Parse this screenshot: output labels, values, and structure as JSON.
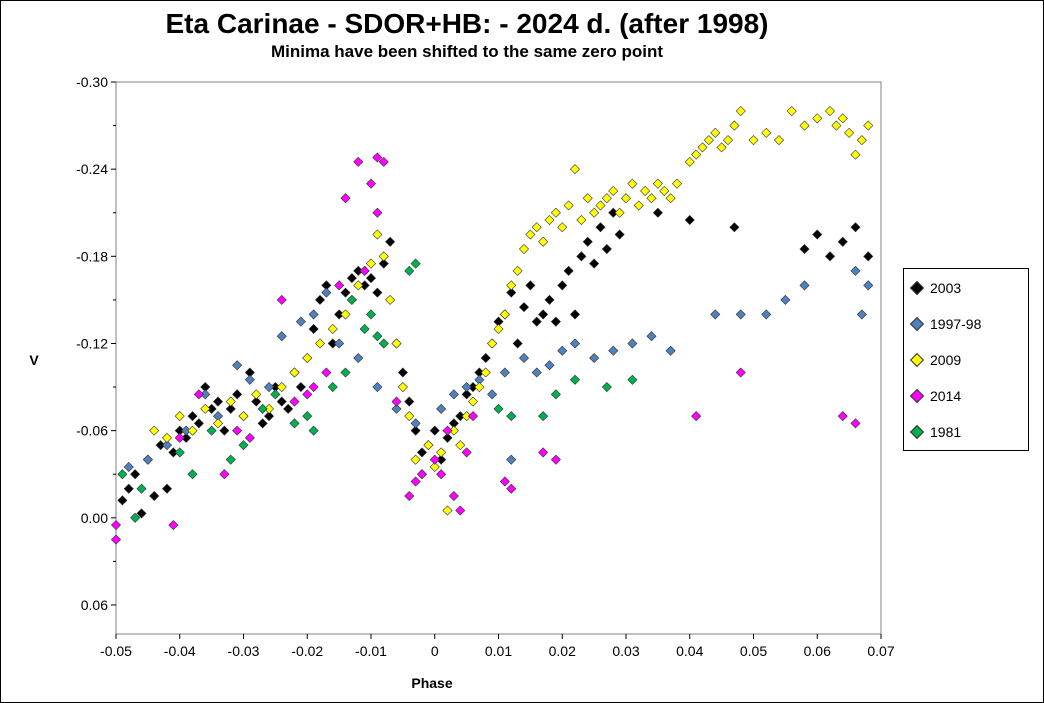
{
  "chart_data": {
    "type": "scatter",
    "title": "Eta Carinae - SDOR+HB: - 2024 d. (after 1998)",
    "subtitle": "Minima have been shifted to the same zero point",
    "xlabel": "Phase",
    "ylabel": "V",
    "xlim": [
      -0.05,
      0.07
    ],
    "ylim": [
      -0.3,
      0.08
    ],
    "y_inverted": true,
    "xticks": [
      "-0.05",
      "-0.04",
      "-0.03",
      "-0.02",
      "-0.01",
      "0",
      "0.01",
      "0.02",
      "0.03",
      "0.04",
      "0.05",
      "0.06",
      "0.07"
    ],
    "yticks": [
      "-0.30",
      "-0.24",
      "-0.18",
      "-0.12",
      "-0.06",
      "0.00",
      "0.06"
    ],
    "legend_position": "right",
    "series": [
      {
        "name": "2003",
        "color": "#000000",
        "points": [
          [
            -0.049,
            -0.012
          ],
          [
            -0.048,
            -0.02
          ],
          [
            -0.047,
            -0.03
          ],
          [
            -0.046,
            -0.003
          ],
          [
            -0.045,
            -0.04
          ],
          [
            -0.044,
            -0.015
          ],
          [
            -0.043,
            -0.05
          ],
          [
            -0.042,
            -0.02
          ],
          [
            -0.041,
            -0.045
          ],
          [
            -0.04,
            -0.06
          ],
          [
            -0.039,
            -0.055
          ],
          [
            -0.038,
            -0.07
          ],
          [
            -0.037,
            -0.065
          ],
          [
            -0.036,
            -0.09
          ],
          [
            -0.035,
            -0.075
          ],
          [
            -0.034,
            -0.08
          ],
          [
            -0.033,
            -0.06
          ],
          [
            -0.032,
            -0.075
          ],
          [
            -0.031,
            -0.085
          ],
          [
            -0.03,
            -0.07
          ],
          [
            -0.029,
            -0.1
          ],
          [
            -0.028,
            -0.08
          ],
          [
            -0.027,
            -0.065
          ],
          [
            -0.026,
            -0.07
          ],
          [
            -0.025,
            -0.09
          ],
          [
            -0.024,
            -0.08
          ],
          [
            -0.023,
            -0.075
          ],
          [
            -0.022,
            -0.1
          ],
          [
            -0.021,
            -0.09
          ],
          [
            -0.02,
            -0.11
          ],
          [
            -0.019,
            -0.13
          ],
          [
            -0.018,
            -0.15
          ],
          [
            -0.017,
            -0.16
          ],
          [
            -0.016,
            -0.12
          ],
          [
            -0.015,
            -0.14
          ],
          [
            -0.014,
            -0.155
          ],
          [
            -0.013,
            -0.165
          ],
          [
            -0.012,
            -0.17
          ],
          [
            -0.011,
            -0.16
          ],
          [
            -0.01,
            -0.165
          ],
          [
            -0.009,
            -0.155
          ],
          [
            -0.008,
            -0.175
          ],
          [
            -0.007,
            -0.19
          ],
          [
            -0.006,
            -0.12
          ],
          [
            -0.005,
            -0.1
          ],
          [
            -0.004,
            -0.08
          ],
          [
            -0.003,
            -0.06
          ],
          [
            -0.002,
            -0.045
          ],
          [
            -0.001,
            -0.05
          ],
          [
            0.0,
            -0.06
          ],
          [
            0.001,
            -0.04
          ],
          [
            0.002,
            -0.055
          ],
          [
            0.003,
            -0.065
          ],
          [
            0.004,
            -0.07
          ],
          [
            0.005,
            -0.085
          ],
          [
            0.006,
            -0.09
          ],
          [
            0.007,
            -0.1
          ],
          [
            0.008,
            -0.11
          ],
          [
            0.009,
            -0.12
          ],
          [
            0.01,
            -0.135
          ],
          [
            0.011,
            -0.14
          ],
          [
            0.012,
            -0.155
          ],
          [
            0.013,
            -0.12
          ],
          [
            0.014,
            -0.145
          ],
          [
            0.015,
            -0.16
          ],
          [
            0.016,
            -0.135
          ],
          [
            0.017,
            -0.14
          ],
          [
            0.018,
            -0.15
          ],
          [
            0.019,
            -0.135
          ],
          [
            0.02,
            -0.16
          ],
          [
            0.021,
            -0.17
          ],
          [
            0.022,
            -0.14
          ],
          [
            0.023,
            -0.18
          ],
          [
            0.024,
            -0.19
          ],
          [
            0.025,
            -0.175
          ],
          [
            0.026,
            -0.2
          ],
          [
            0.027,
            -0.185
          ],
          [
            0.028,
            -0.21
          ],
          [
            0.029,
            -0.195
          ],
          [
            0.035,
            -0.21
          ],
          [
            0.04,
            -0.205
          ],
          [
            0.047,
            -0.2
          ],
          [
            0.058,
            -0.185
          ],
          [
            0.06,
            -0.195
          ],
          [
            0.062,
            -0.18
          ],
          [
            0.064,
            -0.19
          ],
          [
            0.066,
            -0.2
          ],
          [
            0.068,
            -0.18
          ]
        ]
      },
      {
        "name": "1997-98",
        "color": "#4f81bd",
        "points": [
          [
            -0.048,
            -0.035
          ],
          [
            -0.045,
            -0.04
          ],
          [
            -0.042,
            -0.05
          ],
          [
            -0.039,
            -0.06
          ],
          [
            -0.036,
            -0.085
          ],
          [
            -0.034,
            -0.07
          ],
          [
            -0.031,
            -0.105
          ],
          [
            -0.029,
            -0.095
          ],
          [
            -0.026,
            -0.09
          ],
          [
            -0.024,
            -0.125
          ],
          [
            -0.021,
            -0.135
          ],
          [
            -0.019,
            -0.14
          ],
          [
            -0.017,
            -0.155
          ],
          [
            -0.015,
            -0.12
          ],
          [
            -0.012,
            -0.11
          ],
          [
            -0.009,
            -0.09
          ],
          [
            -0.006,
            -0.075
          ],
          [
            -0.003,
            -0.065
          ],
          [
            0.001,
            -0.075
          ],
          [
            0.003,
            -0.085
          ],
          [
            0.005,
            -0.09
          ],
          [
            0.007,
            -0.095
          ],
          [
            0.009,
            -0.085
          ],
          [
            0.011,
            -0.1
          ],
          [
            0.012,
            -0.04
          ],
          [
            0.014,
            -0.11
          ],
          [
            0.016,
            -0.1
          ],
          [
            0.018,
            -0.105
          ],
          [
            0.02,
            -0.115
          ],
          [
            0.022,
            -0.12
          ],
          [
            0.025,
            -0.11
          ],
          [
            0.028,
            -0.115
          ],
          [
            0.031,
            -0.12
          ],
          [
            0.034,
            -0.125
          ],
          [
            0.037,
            -0.115
          ],
          [
            0.044,
            -0.14
          ],
          [
            0.048,
            -0.14
          ],
          [
            0.052,
            -0.14
          ],
          [
            0.055,
            -0.15
          ],
          [
            0.058,
            -0.16
          ],
          [
            0.066,
            -0.17
          ],
          [
            0.067,
            -0.14
          ],
          [
            0.068,
            -0.16
          ]
        ]
      },
      {
        "name": "2009",
        "color": "#ffff00",
        "points": [
          [
            -0.044,
            -0.06
          ],
          [
            -0.042,
            -0.055
          ],
          [
            -0.04,
            -0.07
          ],
          [
            -0.038,
            -0.06
          ],
          [
            -0.036,
            -0.075
          ],
          [
            -0.034,
            -0.065
          ],
          [
            -0.032,
            -0.08
          ],
          [
            -0.03,
            -0.07
          ],
          [
            -0.028,
            -0.085
          ],
          [
            -0.026,
            -0.075
          ],
          [
            -0.024,
            -0.09
          ],
          [
            -0.022,
            -0.1
          ],
          [
            -0.02,
            -0.11
          ],
          [
            -0.018,
            -0.12
          ],
          [
            -0.016,
            -0.13
          ],
          [
            -0.014,
            -0.14
          ],
          [
            -0.013,
            -0.15
          ],
          [
            -0.012,
            -0.16
          ],
          [
            -0.011,
            -0.17
          ],
          [
            -0.01,
            -0.175
          ],
          [
            -0.009,
            -0.195
          ],
          [
            -0.008,
            -0.18
          ],
          [
            -0.007,
            -0.15
          ],
          [
            -0.006,
            -0.12
          ],
          [
            -0.005,
            -0.09
          ],
          [
            -0.004,
            -0.07
          ],
          [
            -0.003,
            -0.04
          ],
          [
            -0.002,
            -0.03
          ],
          [
            -0.001,
            -0.05
          ],
          [
            0.0,
            -0.035
          ],
          [
            0.001,
            -0.045
          ],
          [
            0.002,
            -0.005
          ],
          [
            0.003,
            -0.06
          ],
          [
            0.004,
            -0.05
          ],
          [
            0.005,
            -0.07
          ],
          [
            0.006,
            -0.08
          ],
          [
            0.007,
            -0.09
          ],
          [
            0.008,
            -0.1
          ],
          [
            0.009,
            -0.12
          ],
          [
            0.01,
            -0.13
          ],
          [
            0.011,
            -0.14
          ],
          [
            0.012,
            -0.16
          ],
          [
            0.013,
            -0.17
          ],
          [
            0.014,
            -0.185
          ],
          [
            0.015,
            -0.195
          ],
          [
            0.016,
            -0.2
          ],
          [
            0.017,
            -0.19
          ],
          [
            0.018,
            -0.205
          ],
          [
            0.019,
            -0.21
          ],
          [
            0.02,
            -0.2
          ],
          [
            0.021,
            -0.215
          ],
          [
            0.022,
            -0.24
          ],
          [
            0.023,
            -0.205
          ],
          [
            0.024,
            -0.22
          ],
          [
            0.025,
            -0.21
          ],
          [
            0.026,
            -0.215
          ],
          [
            0.027,
            -0.22
          ],
          [
            0.028,
            -0.225
          ],
          [
            0.029,
            -0.21
          ],
          [
            0.03,
            -0.22
          ],
          [
            0.031,
            -0.23
          ],
          [
            0.032,
            -0.215
          ],
          [
            0.033,
            -0.225
          ],
          [
            0.034,
            -0.22
          ],
          [
            0.035,
            -0.23
          ],
          [
            0.036,
            -0.225
          ],
          [
            0.037,
            -0.22
          ],
          [
            0.038,
            -0.23
          ],
          [
            0.04,
            -0.245
          ],
          [
            0.041,
            -0.25
          ],
          [
            0.042,
            -0.255
          ],
          [
            0.043,
            -0.26
          ],
          [
            0.044,
            -0.265
          ],
          [
            0.045,
            -0.255
          ],
          [
            0.046,
            -0.26
          ],
          [
            0.047,
            -0.27
          ],
          [
            0.048,
            -0.28
          ],
          [
            0.05,
            -0.26
          ],
          [
            0.052,
            -0.265
          ],
          [
            0.054,
            -0.26
          ],
          [
            0.056,
            -0.28
          ],
          [
            0.058,
            -0.27
          ],
          [
            0.06,
            -0.275
          ],
          [
            0.062,
            -0.28
          ],
          [
            0.063,
            -0.27
          ],
          [
            0.064,
            -0.275
          ],
          [
            0.065,
            -0.265
          ],
          [
            0.066,
            -0.25
          ],
          [
            0.067,
            -0.26
          ],
          [
            0.068,
            -0.27
          ]
        ]
      },
      {
        "name": "2014",
        "color": "#ff00ff",
        "points": [
          [
            -0.05,
            0.015
          ],
          [
            -0.05,
            0.005
          ],
          [
            -0.041,
            0.005
          ],
          [
            -0.04,
            -0.055
          ],
          [
            -0.037,
            -0.085
          ],
          [
            -0.033,
            -0.03
          ],
          [
            -0.031,
            -0.06
          ],
          [
            -0.029,
            -0.055
          ],
          [
            -0.024,
            -0.15
          ],
          [
            -0.022,
            -0.08
          ],
          [
            -0.02,
            -0.085
          ],
          [
            -0.019,
            -0.09
          ],
          [
            -0.017,
            -0.1
          ],
          [
            -0.015,
            -0.16
          ],
          [
            -0.014,
            -0.22
          ],
          [
            -0.012,
            -0.245
          ],
          [
            -0.011,
            -0.17
          ],
          [
            -0.01,
            -0.23
          ],
          [
            -0.009,
            -0.248
          ],
          [
            -0.008,
            -0.245
          ],
          [
            -0.009,
            -0.21
          ],
          [
            -0.006,
            -0.08
          ],
          [
            -0.004,
            -0.015
          ],
          [
            -0.003,
            -0.025
          ],
          [
            -0.002,
            -0.03
          ],
          [
            0.0,
            -0.04
          ],
          [
            0.001,
            -0.03
          ],
          [
            0.002,
            -0.06
          ],
          [
            0.003,
            -0.015
          ],
          [
            0.004,
            -0.005
          ],
          [
            0.005,
            -0.045
          ],
          [
            0.006,
            -0.07
          ],
          [
            0.011,
            -0.025
          ],
          [
            0.012,
            -0.02
          ],
          [
            0.017,
            -0.045
          ],
          [
            0.019,
            -0.04
          ],
          [
            0.041,
            -0.07
          ],
          [
            0.048,
            -0.1
          ],
          [
            0.064,
            -0.07
          ],
          [
            0.066,
            -0.065
          ]
        ]
      },
      {
        "name": "1981",
        "color": "#00b050",
        "points": [
          [
            -0.049,
            -0.03
          ],
          [
            -0.047,
            0.0
          ],
          [
            -0.046,
            -0.02
          ],
          [
            -0.04,
            -0.045
          ],
          [
            -0.038,
            -0.03
          ],
          [
            -0.035,
            -0.06
          ],
          [
            -0.032,
            -0.04
          ],
          [
            -0.03,
            -0.05
          ],
          [
            -0.027,
            -0.075
          ],
          [
            -0.025,
            -0.085
          ],
          [
            -0.022,
            -0.065
          ],
          [
            -0.02,
            -0.07
          ],
          [
            -0.019,
            -0.06
          ],
          [
            -0.016,
            -0.09
          ],
          [
            -0.014,
            -0.1
          ],
          [
            -0.013,
            -0.15
          ],
          [
            -0.011,
            -0.13
          ],
          [
            -0.01,
            -0.14
          ],
          [
            -0.009,
            -0.125
          ],
          [
            -0.008,
            -0.12
          ],
          [
            -0.004,
            -0.17
          ],
          [
            -0.003,
            -0.175
          ],
          [
            0.01,
            -0.075
          ],
          [
            0.012,
            -0.07
          ],
          [
            0.017,
            -0.07
          ],
          [
            0.019,
            -0.085
          ],
          [
            0.022,
            -0.095
          ],
          [
            0.027,
            -0.09
          ],
          [
            0.031,
            -0.095
          ]
        ]
      }
    ]
  }
}
